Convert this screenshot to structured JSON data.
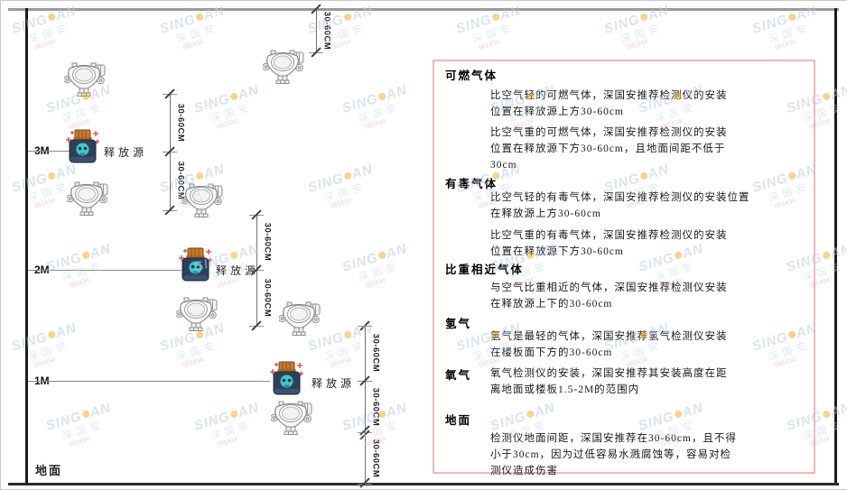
{
  "watermark": {
    "brand_left": "SING",
    "brand_right": "AN",
    "brand_cn": "深国安",
    "code_red": "081434"
  },
  "colors": {
    "panel_border": "#f6b6b6",
    "source_body": "#2e4058",
    "source_cap": "#c57a2e",
    "source_face": "#3fc7cb",
    "sparkle_red": "#e24c4c",
    "watermark_blue": "#b7c9e2",
    "watermark_dot_orange": "#f5a623"
  },
  "diagram": {
    "ground_label": "地面",
    "source_label": "释放源",
    "dim_label": "30-60CM",
    "levels": [
      {
        "label": "3M"
      },
      {
        "label": "2M"
      },
      {
        "label": "1M"
      }
    ]
  },
  "panel": {
    "sections": [
      {
        "title": "可燃气体",
        "paras": [
          [
            "比空气轻的可燃气体，深国安推荐检测仪的安装",
            "位置在释放源上方30-60cm"
          ],
          [
            "比空气重的可燃气体，深国安推荐检测仪的安装",
            "位置在释放源下方30-60cm，且地面间距不低于",
            "30cm"
          ]
        ]
      },
      {
        "title": "有毒气体",
        "paras": [
          [
            "比空气轻的有毒气体，深国安推荐检测仪的安装位置",
            "在释放源上方30-60cm"
          ],
          [
            "比空气重的有毒气体，深国安推荐检测仪的安装",
            "位置在释放源下方30-60cm"
          ]
        ]
      },
      {
        "title": "比重相近气体",
        "paras": [
          [
            "与空气比重相近的气体，深国安推荐检测仪安装",
            "在释放源上下的30-60cm"
          ]
        ]
      },
      {
        "title": "氢气",
        "paras": [
          [
            "氢气是最轻的气体，深国安推荐氢气检测仪安装",
            "在楼板面下方的30-60cm"
          ]
        ]
      },
      {
        "title": "氧气",
        "paras": [
          [
            "氧气检测仪的安装，深国安推荐其安装高度在距",
            "离地面或楼板1.5-2M的范围内"
          ]
        ]
      },
      {
        "title": "地面",
        "paras": [
          [
            "检测仪地面间距，深国安推荐在30-60cm，且不得",
            "小于30cm，因为过低容易水溅腐蚀等，容易对检",
            "测仪造成伤害"
          ]
        ]
      }
    ]
  }
}
